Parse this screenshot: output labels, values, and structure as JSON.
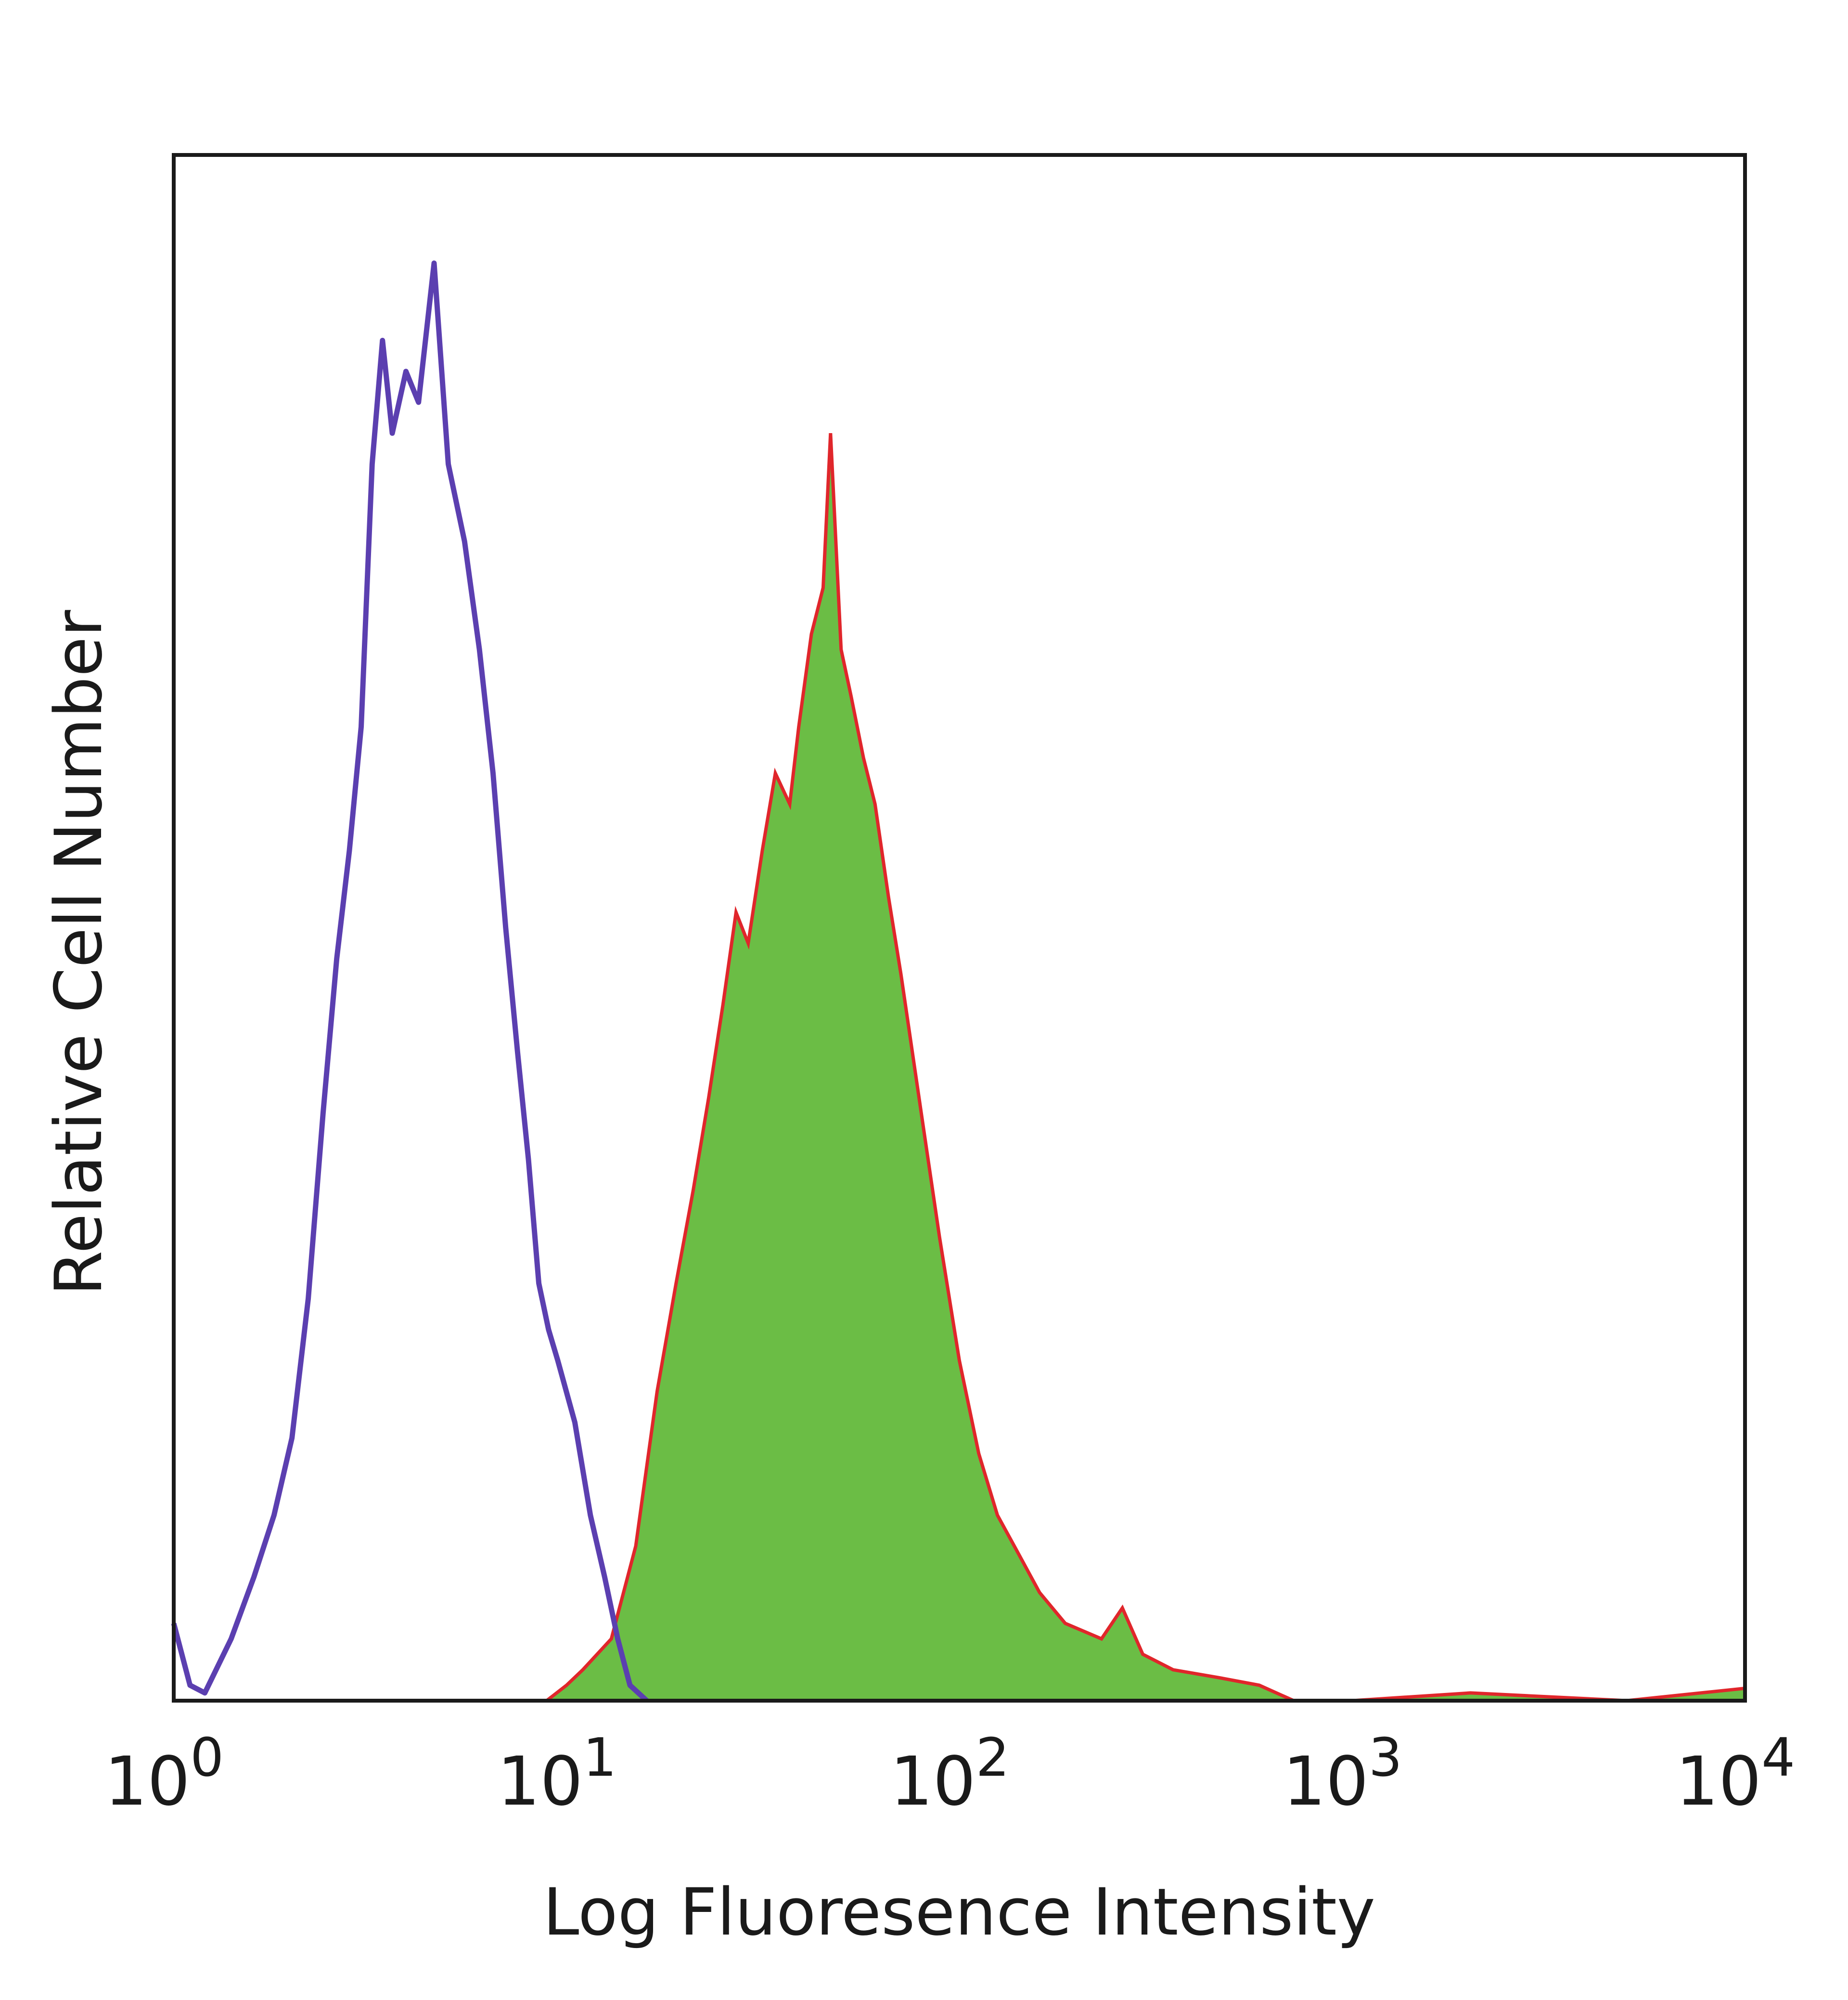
{
  "chart_data": {
    "type": "area",
    "title": "",
    "xlabel": "Log Fluoresence Intensity",
    "ylabel": "Relative Cell Number",
    "xscale": "log",
    "xlim": [
      1,
      10000
    ],
    "ylim": [
      0,
      100
    ],
    "x_ticks": [
      {
        "base": "10",
        "exp": "0",
        "value": 1
      },
      {
        "base": "10",
        "exp": "1",
        "value": 10
      },
      {
        "base": "10",
        "exp": "2",
        "value": 100
      },
      {
        "base": "10",
        "exp": "3",
        "value": 1000
      },
      {
        "base": "10",
        "exp": "4",
        "value": 10000
      }
    ],
    "grid": false,
    "legend": "none",
    "series": [
      {
        "style": "outline",
        "color": "#5b3fb0",
        "x": [
          1.0,
          1.1,
          1.2,
          1.4,
          1.6,
          1.8,
          2.0,
          2.2,
          2.4,
          2.6,
          2.8,
          3.0,
          3.2,
          3.4,
          3.6,
          3.9,
          4.2,
          4.6,
          5.0,
          5.5,
          6.0,
          6.5,
          7.0,
          7.5,
          8.0,
          8.5,
          9.0,
          9.5,
          10.5,
          11.5,
          12.5,
          13.5,
          14.5,
          16
        ],
        "y": [
          5,
          1,
          0.5,
          4,
          8,
          12,
          17,
          26,
          38,
          48,
          55,
          63,
          80,
          88,
          82,
          86,
          84,
          93,
          80,
          75,
          68,
          60,
          50,
          42,
          35,
          27,
          24,
          22,
          18,
          12,
          8,
          4,
          1,
          0
        ]
      },
      {
        "style": "filled",
        "color": "#6bbd45",
        "outline_color": "#e0262b",
        "x": [
          1,
          8,
          8.9,
          10,
          11,
          13,
          15,
          17,
          19,
          21,
          23,
          25,
          27,
          29,
          31.5,
          34,
          37,
          39,
          42,
          45,
          47,
          50,
          53,
          57,
          61,
          66,
          71,
          80,
          89,
          100,
          112,
          125,
          138,
          160,
          186,
          230,
          260,
          293,
          350,
          455,
          580,
          710,
          1000,
          2000,
          5000,
          10000
        ],
        "y": [
          0,
          0,
          0,
          1,
          2,
          4,
          10,
          20,
          27,
          33,
          39,
          45,
          51,
          49,
          55,
          60,
          58,
          63,
          69,
          72,
          82,
          68,
          65,
          61,
          58,
          52,
          47,
          38,
          30,
          22,
          16,
          12,
          10,
          7,
          5,
          4,
          6,
          3,
          2,
          1.5,
          1,
          0,
          0,
          0.5,
          0,
          0.8
        ]
      }
    ]
  }
}
